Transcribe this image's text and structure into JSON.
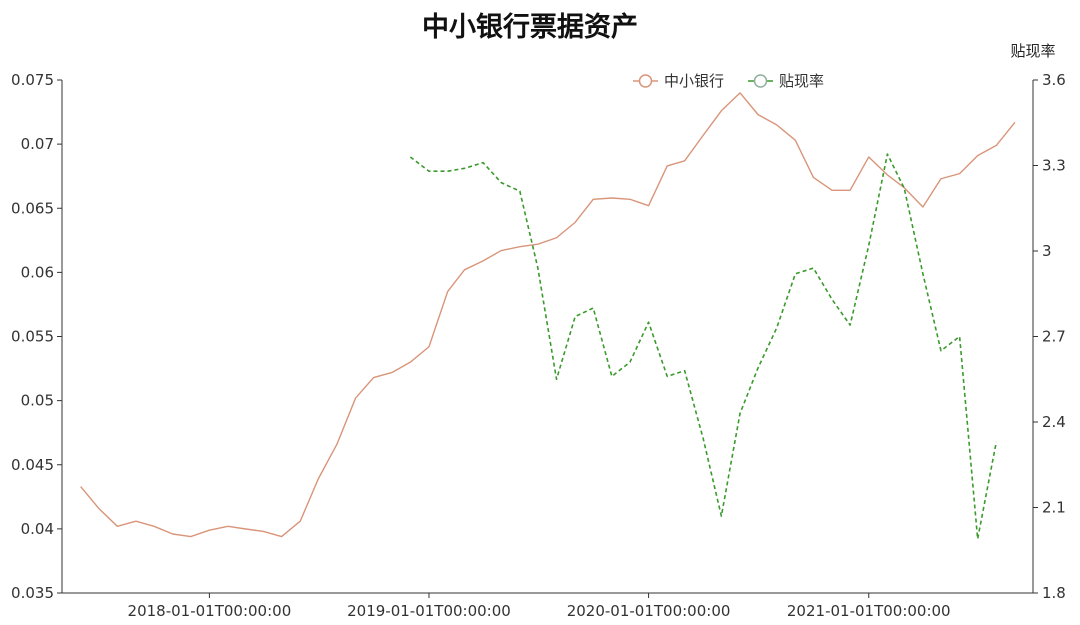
{
  "chart_data": {
    "type": "line",
    "title": "中小银行票据资产",
    "x_ticks": [
      "2018-01-01T00:00:00",
      "2019-01-01T00:00:00",
      "2020-01-01T00:00:00",
      "2021-01-01T00:00:00"
    ],
    "x_range": [
      "2017-05-01",
      "2021-10-01"
    ],
    "y_left": {
      "range": [
        0.035,
        0.075
      ],
      "ticks": [
        "0.075",
        "0.07",
        "0.065",
        "0.06",
        "0.055",
        "0.05",
        "0.045",
        "0.04",
        "0.035"
      ]
    },
    "y_right": {
      "label": "贴现率",
      "range": [
        1.8,
        3.6
      ],
      "ticks": [
        "3.6",
        "3.3",
        "3",
        "2.7",
        "2.4",
        "2.1",
        "1.8"
      ]
    },
    "legend": {
      "position": "top-right"
    },
    "series": [
      {
        "name": "中小银行",
        "axis": "left",
        "color": "#d9957a",
        "style": "solid",
        "points": [
          [
            "2017-06",
            0.0433
          ],
          [
            "2017-07",
            0.0416
          ],
          [
            "2017-08",
            0.0402
          ],
          [
            "2017-09",
            0.0406
          ],
          [
            "2017-10",
            0.0402
          ],
          [
            "2017-11",
            0.0396
          ],
          [
            "2017-12",
            0.0394
          ],
          [
            "2018-01",
            0.0399
          ],
          [
            "2018-02",
            0.0402
          ],
          [
            "2018-03",
            0.04
          ],
          [
            "2018-04",
            0.0398
          ],
          [
            "2018-05",
            0.0394
          ],
          [
            "2018-06",
            0.0406
          ],
          [
            "2018-07",
            0.0439
          ],
          [
            "2018-08",
            0.0466
          ],
          [
            "2018-09",
            0.0502
          ],
          [
            "2018-10",
            0.0518
          ],
          [
            "2018-11",
            0.0522
          ],
          [
            "2018-12",
            0.053
          ],
          [
            "2019-01",
            0.0542
          ],
          [
            "2019-02",
            0.0585
          ],
          [
            "2019-03",
            0.0602
          ],
          [
            "2019-04",
            0.0609
          ],
          [
            "2019-05",
            0.0617
          ],
          [
            "2019-06",
            0.062
          ],
          [
            "2019-07",
            0.0622
          ],
          [
            "2019-08",
            0.0627
          ],
          [
            "2019-09",
            0.0639
          ],
          [
            "2019-10",
            0.0657
          ],
          [
            "2019-11",
            0.0658
          ],
          [
            "2019-12",
            0.0657
          ],
          [
            "2020-01",
            0.0652
          ],
          [
            "2020-02",
            0.0683
          ],
          [
            "2020-03",
            0.0687
          ],
          [
            "2020-04",
            0.0707
          ],
          [
            "2020-05",
            0.0726
          ],
          [
            "2020-06",
            0.074
          ],
          [
            "2020-07",
            0.0723
          ],
          [
            "2020-08",
            0.0715
          ],
          [
            "2020-09",
            0.0703
          ],
          [
            "2020-10",
            0.0674
          ],
          [
            "2020-11",
            0.0664
          ],
          [
            "2020-12",
            0.0664
          ],
          [
            "2021-01",
            0.069
          ],
          [
            "2021-02",
            0.0676
          ],
          [
            "2021-03",
            0.0666
          ],
          [
            "2021-04",
            0.0651
          ],
          [
            "2021-05",
            0.0673
          ],
          [
            "2021-06",
            0.0677
          ],
          [
            "2021-07",
            0.0691
          ],
          [
            "2021-08",
            0.0699
          ],
          [
            "2021-09",
            0.0717
          ]
        ]
      },
      {
        "name": "贴现率",
        "axis": "right",
        "color": "#3a9a2c",
        "style": "dashed",
        "points": [
          [
            "2018-12",
            3.33
          ],
          [
            "2019-01",
            3.28
          ],
          [
            "2019-02",
            3.28
          ],
          [
            "2019-03",
            3.29
          ],
          [
            "2019-04",
            3.31
          ],
          [
            "2019-05",
            3.24
          ],
          [
            "2019-06",
            3.21
          ],
          [
            "2019-07",
            2.94
          ],
          [
            "2019-08",
            2.55
          ],
          [
            "2019-09",
            2.77
          ],
          [
            "2019-10",
            2.8
          ],
          [
            "2019-11",
            2.56
          ],
          [
            "2019-12",
            2.61
          ],
          [
            "2020-01",
            2.75
          ],
          [
            "2020-02",
            2.56
          ],
          [
            "2020-03",
            2.58
          ],
          [
            "2020-04",
            2.34
          ],
          [
            "2020-05",
            2.07
          ],
          [
            "2020-06",
            2.43
          ],
          [
            "2020-07",
            2.59
          ],
          [
            "2020-08",
            2.73
          ],
          [
            "2020-09",
            2.92
          ],
          [
            "2020-10",
            2.94
          ],
          [
            "2020-11",
            2.83
          ],
          [
            "2020-12",
            2.74
          ],
          [
            "2021-01",
            3.02
          ],
          [
            "2021-02",
            3.34
          ],
          [
            "2021-03",
            3.22
          ],
          [
            "2021-04",
            2.92
          ],
          [
            "2021-05",
            2.65
          ],
          [
            "2021-06",
            2.7
          ],
          [
            "2021-07",
            1.99
          ],
          [
            "2021-08",
            2.33
          ]
        ]
      }
    ]
  }
}
